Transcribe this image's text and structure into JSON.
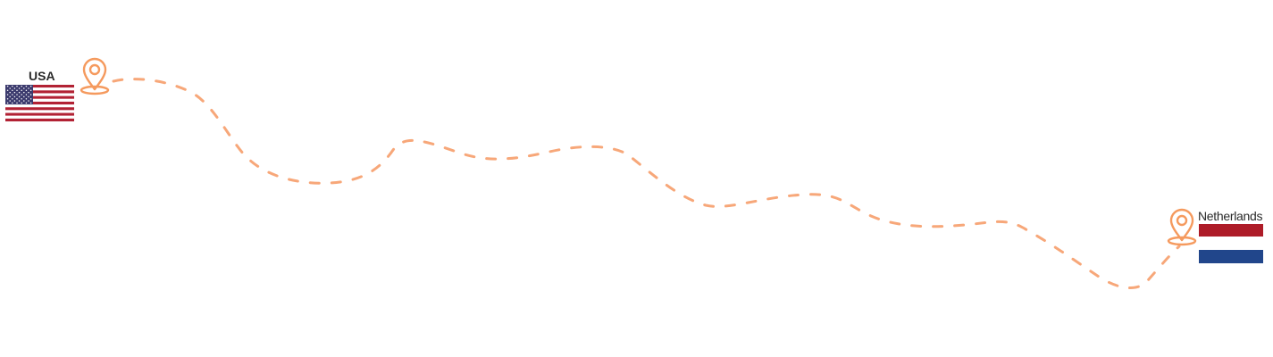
{
  "origin": {
    "country": "USA",
    "flag_icon": "usa-flag-icon",
    "pin_icon": "location-pin-icon"
  },
  "destination": {
    "country": "Netherlands",
    "flag_icon": "netherlands-flag-icon",
    "pin_icon": "location-pin-icon"
  },
  "colors": {
    "route": "#f7a779",
    "pin": "#f59a5e",
    "label_text": "#2a2a2a",
    "usa_red": "#b22234",
    "usa_blue": "#3c3b6e",
    "nl_red": "#ae1c28",
    "nl_white": "#ffffff",
    "nl_blue": "#21468b"
  }
}
